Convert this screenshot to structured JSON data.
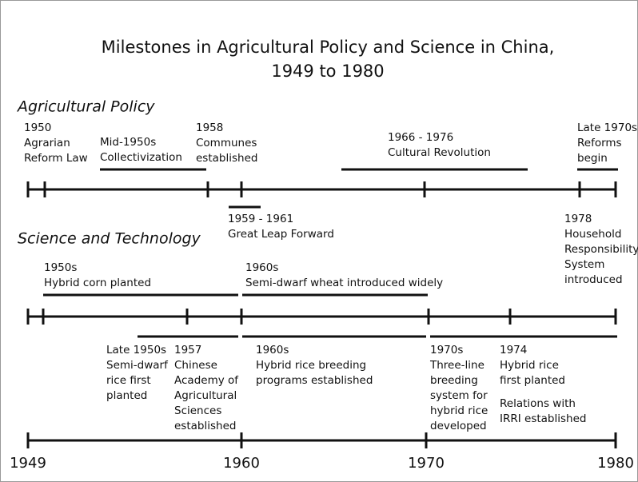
{
  "title": [
    "Milestones in Agricultural Policy and Science in China,",
    "1949 to 1980"
  ],
  "policy": {
    "heading": "Agricultural Policy",
    "events": [
      {
        "lines": [
          "1950",
          "Agrarian",
          "Reform Law"
        ]
      },
      {
        "lines": [
          "Mid-1950s",
          "Collectivization"
        ]
      },
      {
        "lines": [
          "1958",
          "Communes",
          "established"
        ]
      },
      {
        "lines": [
          "1966 - 1976",
          "Cultural Revolution"
        ]
      },
      {
        "lines": [
          "Late 1970s",
          "Reforms",
          "begin"
        ]
      },
      {
        "lines": [
          "1959 - 1961",
          "Great Leap Forward"
        ]
      },
      {
        "lines": [
          "1978",
          "Household",
          "Responsibility",
          "System",
          "introduced"
        ]
      }
    ]
  },
  "science": {
    "heading": "Science and Technology",
    "events": [
      {
        "lines": [
          "1950s",
          "Hybrid corn planted"
        ]
      },
      {
        "lines": [
          "1960s",
          "Semi-dwarf wheat introduced widely"
        ]
      },
      {
        "lines": [
          "Late 1950s",
          "Semi-dwarf",
          "rice first",
          "planted"
        ]
      },
      {
        "lines": [
          "1957",
          "Chinese",
          "Academy of",
          "Agricultural",
          "Sciences",
          "established"
        ]
      },
      {
        "lines": [
          "1960s",
          "Hybrid rice breeding",
          "programs established"
        ]
      },
      {
        "lines": [
          "1970s",
          "Three-line",
          "breeding",
          "system for",
          "hybrid rice",
          "developed"
        ]
      },
      {
        "lines": [
          "1974",
          "Hybrid rice",
          "first planted"
        ]
      },
      {
        "lines": [
          "Relations with",
          "IRRI established"
        ]
      }
    ]
  },
  "axis": {
    "years": [
      1949,
      1960,
      1970,
      1980
    ]
  }
}
